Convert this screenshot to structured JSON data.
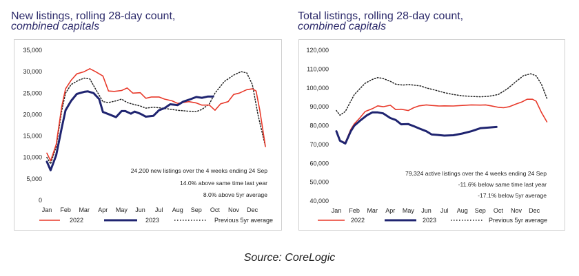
{
  "source": "Source: CoreLogic",
  "colors": {
    "c2022": "#e8392a",
    "c2023": "#1f2470",
    "avg": "#222222",
    "title": "#2d2b6b"
  },
  "chart_data": [
    {
      "type": "line",
      "title_line1": "New listings, rolling 28-day count,",
      "title_line2": "combined capitals",
      "x": [
        "Jan",
        "Feb",
        "Mar",
        "Apr",
        "May",
        "Jun",
        "Jul",
        "Aug",
        "Sep",
        "Oct",
        "Nov",
        "Dec"
      ],
      "y_ticks": [
        "0",
        "5,000",
        "10,000",
        "15,000",
        "20,000",
        "25,000",
        "30,000",
        "35,000"
      ],
      "ylim": [
        0,
        35000
      ],
      "xlim": [
        1,
        12.7
      ],
      "legend": [
        "2022",
        "2023",
        "Previous 5yr average"
      ],
      "annotations": [
        "24,200 new listings over the 4 weeks ending 24 Sep",
        "14.0% above same time last year",
        "8.0% above 5yr average"
      ],
      "series": [
        {
          "name": "2022",
          "style": "solid",
          "points": [
            [
              1,
              11000
            ],
            [
              1.2,
              9200
            ],
            [
              1.5,
              13000
            ],
            [
              1.8,
              22000
            ],
            [
              2,
              26000
            ],
            [
              2.3,
              28000
            ],
            [
              2.6,
              29500
            ],
            [
              3,
              30000
            ],
            [
              3.3,
              30700
            ],
            [
              3.6,
              30000
            ],
            [
              4,
              29000
            ],
            [
              4.3,
              25500
            ],
            [
              4.6,
              25400
            ],
            [
              5,
              25600
            ],
            [
              5.3,
              26200
            ],
            [
              5.6,
              25000
            ],
            [
              6,
              25100
            ],
            [
              6.3,
              23800
            ],
            [
              6.6,
              24100
            ],
            [
              7,
              24100
            ],
            [
              7.3,
              23600
            ],
            [
              7.7,
              23200
            ],
            [
              8,
              22600
            ],
            [
              8.3,
              22800
            ],
            [
              8.6,
              23000
            ],
            [
              9,
              22700
            ],
            [
              9.3,
              22200
            ],
            [
              9.7,
              22200
            ],
            [
              10,
              21000
            ],
            [
              10.3,
              22500
            ],
            [
              10.7,
              23000
            ],
            [
              11,
              24700
            ],
            [
              11.3,
              25000
            ],
            [
              11.7,
              25800
            ],
            [
              12,
              26000
            ],
            [
              12.2,
              25500
            ],
            [
              12.4,
              21000
            ],
            [
              12.7,
              12500
            ]
          ]
        },
        {
          "name": "2023",
          "style": "solid",
          "points": [
            [
              1,
              9000
            ],
            [
              1.2,
              7000
            ],
            [
              1.5,
              10500
            ],
            [
              1.8,
              17000
            ],
            [
              2,
              21000
            ],
            [
              2.3,
              23200
            ],
            [
              2.6,
              24800
            ],
            [
              3,
              25300
            ],
            [
              3.2,
              25400
            ],
            [
              3.5,
              25000
            ],
            [
              3.8,
              23600
            ],
            [
              4,
              20600
            ],
            [
              4.3,
              20100
            ],
            [
              4.7,
              19400
            ],
            [
              5,
              20800
            ],
            [
              5.2,
              20800
            ],
            [
              5.5,
              20200
            ],
            [
              5.7,
              20700
            ],
            [
              6,
              20200
            ],
            [
              6.3,
              19500
            ],
            [
              6.7,
              19700
            ],
            [
              7,
              21000
            ],
            [
              7.3,
              21500
            ],
            [
              7.6,
              22400
            ],
            [
              8,
              22200
            ],
            [
              8.3,
              23000
            ],
            [
              8.7,
              23600
            ],
            [
              9,
              24100
            ],
            [
              9.3,
              23900
            ],
            [
              9.6,
              24200
            ],
            [
              9.9,
              24200
            ]
          ]
        },
        {
          "name": "Previous 5yr average",
          "style": "dotted",
          "points": [
            [
              1,
              10000
            ],
            [
              1.2,
              8500
            ],
            [
              1.5,
              12500
            ],
            [
              1.8,
              21000
            ],
            [
              2,
              25000
            ],
            [
              2.3,
              27000
            ],
            [
              2.7,
              28000
            ],
            [
              3,
              28500
            ],
            [
              3.3,
              28300
            ],
            [
              3.6,
              26000
            ],
            [
              4,
              23000
            ],
            [
              4.3,
              22800
            ],
            [
              4.7,
              23200
            ],
            [
              5,
              23600
            ],
            [
              5.3,
              22800
            ],
            [
              5.7,
              22300
            ],
            [
              6,
              22000
            ],
            [
              6.3,
              21500
            ],
            [
              6.7,
              21700
            ],
            [
              7,
              21600
            ],
            [
              7.5,
              21300
            ],
            [
              8,
              21000
            ],
            [
              8.5,
              20800
            ],
            [
              9,
              20700
            ],
            [
              9.3,
              21200
            ],
            [
              9.7,
              22500
            ],
            [
              10,
              25000
            ],
            [
              10.5,
              27700
            ],
            [
              11,
              29200
            ],
            [
              11.4,
              30000
            ],
            [
              11.7,
              29700
            ],
            [
              12,
              27000
            ],
            [
              12.3,
              20000
            ],
            [
              12.7,
              12500
            ]
          ]
        }
      ]
    },
    {
      "type": "line",
      "title_line1": "Total listings, rolling 28-day count,",
      "title_line2": "combined capitals",
      "x": [
        "Jan",
        "Feb",
        "Mar",
        "Apr",
        "May",
        "Jun",
        "Jul",
        "Aug",
        "Sep",
        "Oct",
        "Nov",
        "Dec"
      ],
      "y_ticks": [
        "40,000",
        "50,000",
        "60,000",
        "70,000",
        "80,000",
        "90,000",
        "100,000",
        "110,000",
        "120,000"
      ],
      "ylim": [
        40000,
        120000
      ],
      "xlim": [
        1,
        12.7
      ],
      "legend": [
        "2022",
        "2023",
        "Previous 5yr average"
      ],
      "annotations": [
        "79,324 active listings over the 4 weeks ending 24 Sep",
        "-11.6% below same time last year",
        "-17.1% below 5yr average"
      ],
      "series": [
        {
          "name": "2022",
          "style": "solid",
          "points": [
            [
              1,
              77000
            ],
            [
              1.2,
              72000
            ],
            [
              1.5,
              71000
            ],
            [
              1.8,
              78000
            ],
            [
              2,
              81000
            ],
            [
              2.3,
              84000
            ],
            [
              2.6,
              87500
            ],
            [
              3,
              89000
            ],
            [
              3.3,
              90500
            ],
            [
              3.6,
              90000
            ],
            [
              4,
              90800
            ],
            [
              4.3,
              88500
            ],
            [
              4.6,
              88700
            ],
            [
              5,
              88000
            ],
            [
              5.3,
              89500
            ],
            [
              5.6,
              90500
            ],
            [
              6,
              91000
            ],
            [
              6.3,
              90700
            ],
            [
              6.7,
              90400
            ],
            [
              7,
              90500
            ],
            [
              7.5,
              90400
            ],
            [
              8,
              90700
            ],
            [
              8.5,
              91000
            ],
            [
              9,
              90900
            ],
            [
              9.3,
              91000
            ],
            [
              9.6,
              90500
            ],
            [
              10,
              89700
            ],
            [
              10.3,
              89500
            ],
            [
              10.6,
              90000
            ],
            [
              11,
              91500
            ],
            [
              11.3,
              92500
            ],
            [
              11.6,
              94000
            ],
            [
              11.9,
              94000
            ],
            [
              12.1,
              93000
            ],
            [
              12.4,
              87000
            ],
            [
              12.7,
              82000
            ]
          ]
        },
        {
          "name": "2023",
          "style": "solid",
          "points": [
            [
              1,
              77000
            ],
            [
              1.2,
              72000
            ],
            [
              1.5,
              70500
            ],
            [
              1.8,
              77000
            ],
            [
              2,
              80000
            ],
            [
              2.3,
              82500
            ],
            [
              2.7,
              85500
            ],
            [
              3,
              87000
            ],
            [
              3.3,
              87000
            ],
            [
              3.6,
              86500
            ],
            [
              4,
              84000
            ],
            [
              4.3,
              83000
            ],
            [
              4.6,
              80700
            ],
            [
              5,
              80800
            ],
            [
              5.3,
              79700
            ],
            [
              5.6,
              78500
            ],
            [
              6,
              77000
            ],
            [
              6.3,
              75300
            ],
            [
              6.7,
              75000
            ],
            [
              7,
              74700
            ],
            [
              7.5,
              74900
            ],
            [
              8,
              75800
            ],
            [
              8.5,
              77000
            ],
            [
              9,
              78600
            ],
            [
              9.5,
              79000
            ],
            [
              9.9,
              79300
            ]
          ]
        },
        {
          "name": "Previous 5yr average",
          "style": "dotted",
          "points": [
            [
              1,
              88000
            ],
            [
              1.2,
              85500
            ],
            [
              1.5,
              87500
            ],
            [
              1.8,
              93000
            ],
            [
              2,
              96500
            ],
            [
              2.3,
              99500
            ],
            [
              2.6,
              102500
            ],
            [
              3,
              104500
            ],
            [
              3.3,
              105500
            ],
            [
              3.6,
              105000
            ],
            [
              4,
              103500
            ],
            [
              4.3,
              102000
            ],
            [
              4.7,
              101500
            ],
            [
              5,
              101800
            ],
            [
              5.3,
              101500
            ],
            [
              5.7,
              101000
            ],
            [
              6,
              100000
            ],
            [
              6.5,
              98800
            ],
            [
              7,
              97500
            ],
            [
              7.5,
              96500
            ],
            [
              8,
              95800
            ],
            [
              8.5,
              95500
            ],
            [
              9,
              95300
            ],
            [
              9.5,
              95600
            ],
            [
              10,
              96500
            ],
            [
              10.5,
              99500
            ],
            [
              11,
              103500
            ],
            [
              11.4,
              106500
            ],
            [
              11.8,
              107500
            ],
            [
              12.1,
              106500
            ],
            [
              12.4,
              102000
            ],
            [
              12.7,
              94500
            ]
          ]
        }
      ]
    }
  ]
}
